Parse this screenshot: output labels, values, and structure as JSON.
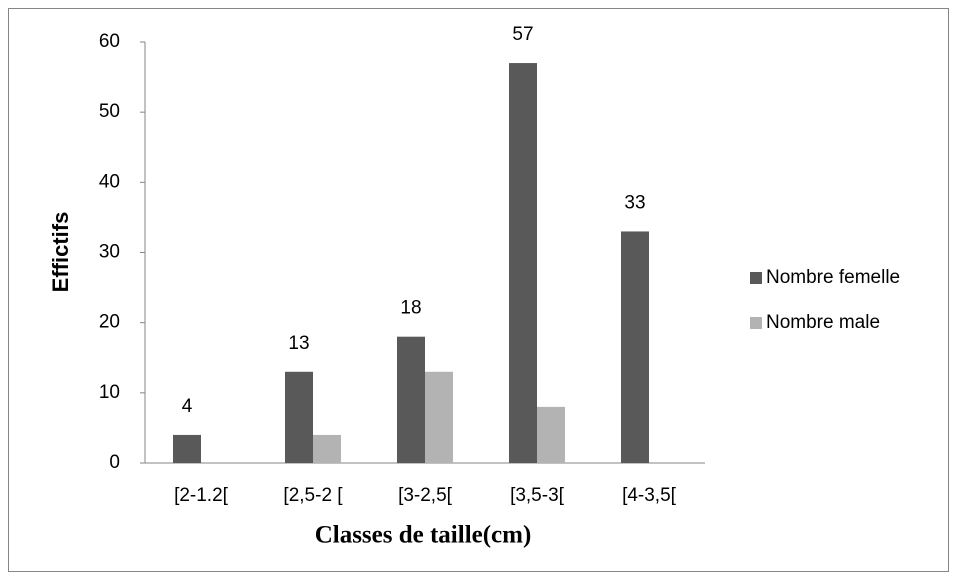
{
  "chart_data": {
    "type": "bar",
    "x_label": "Classes de taille(cm)",
    "y_label": "Effictifs",
    "categories": [
      "[2-1.2[",
      "[2,5-2 [",
      "[3-2,5[",
      "[3,5-3[",
      "[4-3,5["
    ],
    "series": [
      {
        "name": "Nombre femelle",
        "color": "#595959",
        "values": [
          4,
          13,
          18,
          57,
          33
        ],
        "data_labels": true
      },
      {
        "name": "Nombre male",
        "color": "#b3b3b3",
        "values": [
          0,
          4,
          13,
          8,
          0
        ],
        "data_labels": false
      }
    ],
    "ylim": [
      0,
      60
    ],
    "yticks": [
      0,
      10,
      20,
      30,
      40,
      50,
      60
    ],
    "grid": false,
    "legend": "right"
  }
}
